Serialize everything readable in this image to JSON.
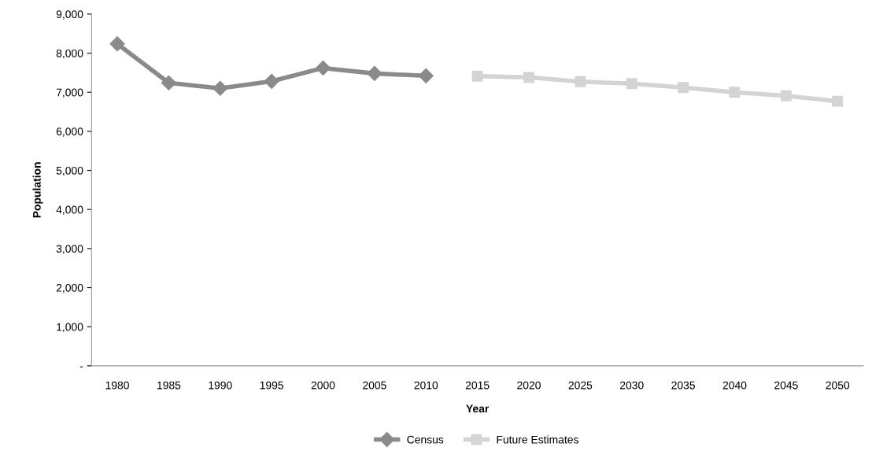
{
  "chart_data": {
    "type": "line",
    "xlabel": "Year",
    "ylabel": "Population",
    "categories": [
      "1980",
      "1985",
      "1990",
      "1995",
      "2000",
      "2005",
      "2010",
      "2015",
      "2020",
      "2025",
      "2030",
      "2035",
      "2040",
      "2045",
      "2050"
    ],
    "series": [
      {
        "name": "Census",
        "color": "#8a8a8a",
        "marker": "diamond",
        "values": [
          8240,
          7240,
          7100,
          7280,
          7620,
          7480,
          7420,
          null,
          null,
          null,
          null,
          null,
          null,
          null,
          null
        ]
      },
      {
        "name": "Future Estimates",
        "color": "#d4d4d4",
        "marker": "square",
        "values": [
          null,
          null,
          null,
          null,
          null,
          null,
          null,
          7410,
          7380,
          7270,
          7220,
          7120,
          7000,
          6910,
          6770
        ]
      }
    ],
    "ylim": [
      0,
      9000
    ],
    "yticks": [
      {
        "value": 0,
        "label": "-"
      },
      {
        "value": 1000,
        "label": "1,000"
      },
      {
        "value": 2000,
        "label": "2,000"
      },
      {
        "value": 3000,
        "label": "3,000"
      },
      {
        "value": 4000,
        "label": "4,000"
      },
      {
        "value": 5000,
        "label": "5,000"
      },
      {
        "value": 6000,
        "label": "6,000"
      },
      {
        "value": 7000,
        "label": "7,000"
      },
      {
        "value": 8000,
        "label": "8,000"
      },
      {
        "value": 9000,
        "label": "9,000"
      }
    ],
    "grid": false,
    "legend": "bottom",
    "line_style": "solid"
  }
}
